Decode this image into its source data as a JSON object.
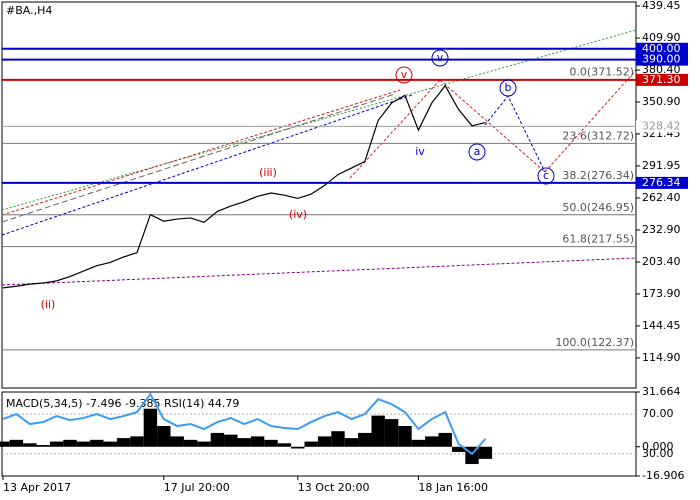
{
  "chart_data": [
    {
      "type": "line",
      "title": "#BA.,H4",
      "categories": [
        "13 Apr 2017",
        null,
        null,
        null,
        null,
        null,
        null,
        null,
        null,
        null,
        null,
        null,
        "17 Jul 20:00",
        null,
        null,
        null,
        null,
        null,
        null,
        null,
        null,
        null,
        "13 Oct 20:00",
        null,
        null,
        null,
        null,
        null,
        null,
        null,
        null,
        "18 Jan 16:00",
        null,
        null,
        null,
        null,
        null
      ],
      "series": [
        {
          "color": "#000000",
          "values": [
            179.5,
            181,
            183,
            184,
            186,
            190,
            195,
            200,
            203,
            208,
            212,
            247,
            241,
            243,
            244,
            240,
            250,
            255,
            259,
            264,
            267,
            265,
            262,
            266,
            274,
            284,
            290,
            296,
            334,
            350,
            357,
            325,
            350,
            366,
            344,
            329,
            332
          ]
        }
      ],
      "ylim": [
        87.2,
        443.14
      ],
      "yticks": [
        {
          "value": 439.45,
          "label": "439.45"
        },
        {
          "value": 409.9,
          "label": "409.90"
        },
        {
          "value": 380.4,
          "label": "380.40"
        },
        {
          "value": 350.9,
          "label": "350.90"
        },
        {
          "value": 321.45,
          "label": "321.45"
        },
        {
          "value": 291.95,
          "label": "291.95"
        },
        {
          "value": 262.4,
          "label": "262.40"
        },
        {
          "value": 232.9,
          "label": "232.90"
        },
        {
          "value": 203.4,
          "label": "203.40"
        },
        {
          "value": 173.9,
          "label": "173.90"
        },
        {
          "value": 144.45,
          "label": "144.45"
        },
        {
          "value": 114.9,
          "label": "114.90"
        }
      ],
      "price_lines": [
        {
          "value": 400,
          "label": "400.00",
          "color": "#0000cc"
        },
        {
          "value": 390,
          "label": "390.00",
          "color": "#0000cc"
        },
        {
          "value": 371.3,
          "label": "371.30",
          "color": "#cc0000"
        },
        {
          "value": 328.42,
          "label": "328.42",
          "color": "#a0a0a0"
        },
        {
          "value": 276.34,
          "label": "276.34",
          "color": "#0000cc"
        }
      ],
      "levels": [
        {
          "value": 371.52,
          "label": "0.0(371.52)"
        },
        {
          "value": 312.72,
          "label": "23.6(312.72)"
        },
        {
          "value": 276.34,
          "label": "38.2(276.34)"
        },
        {
          "value": 246.95,
          "label": "50.0(246.95)"
        },
        {
          "value": 217.55,
          "label": "61.8(217.55)"
        },
        {
          "value": 122.37,
          "label": "100.0(122.37)"
        }
      ],
      "annotations": [
        "(ii)",
        "(iii)",
        "(iv)",
        "v",
        "v",
        "iv",
        "a",
        "b",
        "c"
      ]
    },
    {
      "type": "bar",
      "title": "MACD(5,34,5) -7.496 -9.385 RSI(14) 44.79",
      "series": [
        {
          "color": "#000000",
          "values": [
            3,
            4,
            2,
            1,
            3,
            4,
            3,
            4,
            3,
            5,
            6,
            22,
            12,
            6,
            4,
            3,
            8,
            7,
            5,
            6,
            4,
            2,
            -1,
            3,
            6,
            9,
            5,
            8,
            18,
            16,
            12,
            4,
            6,
            8,
            -3,
            -10,
            -7
          ]
        },
        {
          "color": "#3c9cf0",
          "axis": "y2",
          "values": [
            65,
            70,
            60,
            62,
            68,
            64,
            66,
            70,
            65,
            68,
            72,
            90,
            65,
            58,
            60,
            55,
            62,
            66,
            60,
            65,
            58,
            56,
            55,
            62,
            68,
            72,
            65,
            70,
            85,
            80,
            72,
            55,
            65,
            72,
            40,
            30,
            45
          ]
        }
      ],
      "ylim": [
        -16.906,
        31.664
      ],
      "yticks": [
        {
          "value": 31.664,
          "label": "31.664"
        },
        {
          "value": 0,
          "label": "0.000"
        },
        {
          "value": -16.906,
          "label": "-16.906"
        }
      ],
      "y2lim": [
        7.8,
        92.2
      ],
      "y2ticks": [
        {
          "value": 70,
          "label": "70.00"
        },
        {
          "value": 30,
          "label": "30.00"
        }
      ]
    }
  ]
}
